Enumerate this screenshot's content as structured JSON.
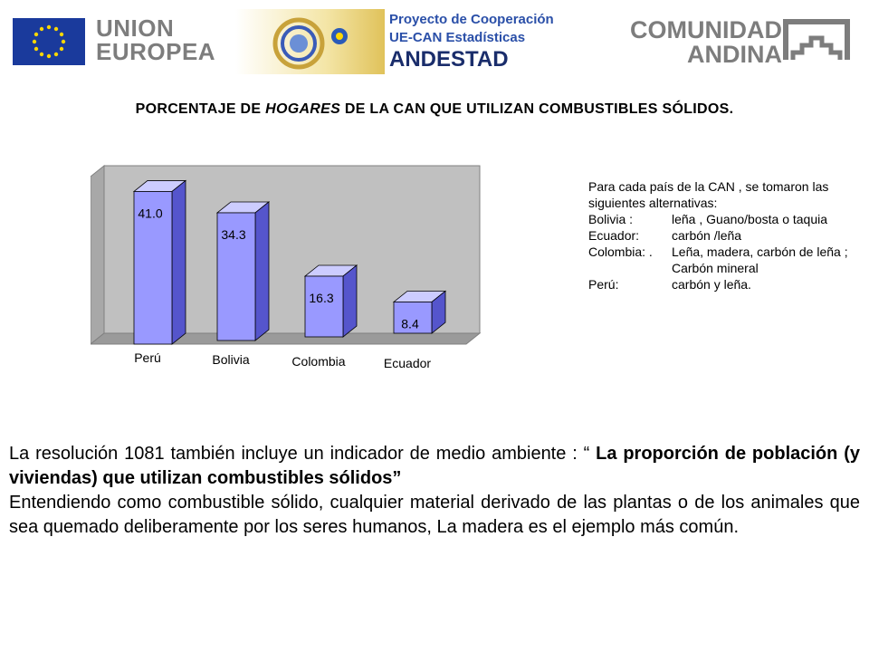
{
  "header": {
    "eu_line1": "UNION",
    "eu_line2": "EUROPEA",
    "proj_line1": "Proyecto de Cooperación",
    "proj_line2": "UE-CAN Estadísticas",
    "proj_line3": "ANDESTAD",
    "can_line1": "COMUNIDAD",
    "can_line2": "ANDINA"
  },
  "chart_data": {
    "type": "bar",
    "title": "PORCENTAJE DE HOGARES DE LA CAN QUE UTILIZAN COMBUSTIBLES SÓLIDOS.",
    "title_parts": [
      "PORCENTAJE DE ",
      "HOGARES",
      " DE LA CAN QUE UTILIZAN COMBUSTIBLES SÓLIDOS."
    ],
    "categories": [
      "Perú",
      "Bolivia",
      "Colombia",
      "Ecuador"
    ],
    "values": [
      41.0,
      34.3,
      16.3,
      8.4
    ],
    "data_labels": [
      "41.0",
      "34.3",
      "16.3",
      "8.4"
    ],
    "ylim": [
      0,
      45
    ],
    "bar_color": "#9999ff",
    "wall_color": "#c0c0c0",
    "grid": false,
    "legend": "none"
  },
  "note": {
    "intro": "Para cada  país de la CAN , se tomaron las siguientes alternativas:",
    "rows": [
      {
        "k": "Bolivia :",
        "v": " leña , Guano/bosta o taquia"
      },
      {
        "k": "Ecuador:",
        "v": "carbón /leña"
      },
      {
        "k": "Colombia: .",
        "v": "Leña, madera, carbón de leña ; Carbón mineral"
      },
      {
        "k": "Perú:",
        "v": "carbón y leña."
      }
    ]
  },
  "body": {
    "p1_plain": "La resolución 1081 también incluye un indicador de medio ambiente : “ ",
    "p1_bold": "La proporción de población (y viviendas) que utilizan combustibles sólidos”",
    "p2": "Entendiendo como combustible sólido, cualquier material derivado de las plantas o de los animales que sea quemado deliberamente por los seres humanos, La madera es el ejemplo más común."
  }
}
